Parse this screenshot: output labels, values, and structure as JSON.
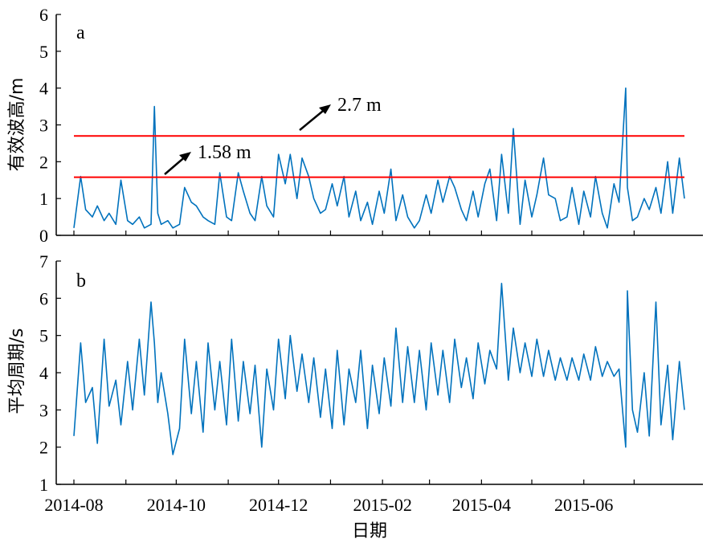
{
  "chart_data": [
    {
      "panel": "a",
      "type": "line",
      "ylabel": "有效波高/m",
      "ylim": [
        0,
        6
      ],
      "yticks": [
        "0",
        "1",
        "2",
        "3",
        "4",
        "5",
        "6"
      ],
      "x_range": [
        "2014-08-01",
        "2015-07-31"
      ],
      "line_color": "#0072BD",
      "series": [
        {
          "x": [
            "2014-08-01",
            "2014-08-05",
            "2014-08-08",
            "2014-08-12",
            "2014-08-15",
            "2014-08-19",
            "2014-08-22",
            "2014-08-26",
            "2014-08-29",
            "2014-09-02",
            "2014-09-05",
            "2014-09-09",
            "2014-09-12",
            "2014-09-16",
            "2014-09-18",
            "2014-09-20",
            "2014-09-22",
            "2014-09-26",
            "2014-09-29",
            "2014-10-03",
            "2014-10-06",
            "2014-10-10",
            "2014-10-13",
            "2014-10-17",
            "2014-10-20",
            "2014-10-24",
            "2014-10-27",
            "2014-10-31",
            "2014-11-03",
            "2014-11-07",
            "2014-11-10",
            "2014-11-14",
            "2014-11-17",
            "2014-11-21",
            "2014-11-24",
            "2014-11-28",
            "2014-12-01",
            "2014-12-05",
            "2014-12-08",
            "2014-12-12",
            "2014-12-15",
            "2014-12-19",
            "2014-12-22",
            "2014-12-26",
            "2014-12-29",
            "2015-01-02",
            "2015-01-05",
            "2015-01-09",
            "2015-01-12",
            "2015-01-16",
            "2015-01-19",
            "2015-01-23",
            "2015-01-26",
            "2015-01-30",
            "2015-02-02",
            "2015-02-06",
            "2015-02-09",
            "2015-02-13",
            "2015-02-16",
            "2015-02-20",
            "2015-02-23",
            "2015-02-27",
            "2015-03-02",
            "2015-03-06",
            "2015-03-09",
            "2015-03-13",
            "2015-03-16",
            "2015-03-20",
            "2015-03-23",
            "2015-03-27",
            "2015-03-30",
            "2015-04-03",
            "2015-04-06",
            "2015-04-10",
            "2015-04-13",
            "2015-04-17",
            "2015-04-20",
            "2015-04-24",
            "2015-04-27",
            "2015-05-01",
            "2015-05-04",
            "2015-05-08",
            "2015-05-11",
            "2015-05-15",
            "2015-05-18",
            "2015-05-22",
            "2015-05-25",
            "2015-05-29",
            "2015-06-01",
            "2015-06-05",
            "2015-06-08",
            "2015-06-12",
            "2015-06-15",
            "2015-06-19",
            "2015-06-22",
            "2015-06-26",
            "2015-06-27",
            "2015-06-30",
            "2015-07-03",
            "2015-07-07",
            "2015-07-10",
            "2015-07-14",
            "2015-07-17",
            "2015-07-21",
            "2015-07-24",
            "2015-07-28",
            "2015-07-31"
          ],
          "y": [
            0.2,
            1.6,
            0.7,
            0.5,
            0.8,
            0.4,
            0.6,
            0.3,
            1.5,
            0.4,
            0.3,
            0.5,
            0.2,
            0.3,
            3.5,
            0.6,
            0.3,
            0.4,
            0.2,
            0.3,
            1.3,
            0.9,
            0.8,
            0.5,
            0.4,
            0.3,
            1.7,
            0.5,
            0.4,
            1.7,
            1.2,
            0.6,
            0.4,
            1.6,
            0.8,
            0.5,
            2.2,
            1.4,
            2.2,
            1.0,
            2.1,
            1.6,
            1.0,
            0.6,
            0.7,
            1.4,
            0.8,
            1.6,
            0.5,
            1.2,
            0.4,
            0.9,
            0.3,
            1.2,
            0.6,
            1.8,
            0.4,
            1.1,
            0.5,
            0.2,
            0.4,
            1.1,
            0.6,
            1.5,
            0.9,
            1.6,
            1.3,
            0.7,
            0.4,
            1.2,
            0.5,
            1.4,
            1.8,
            0.4,
            2.2,
            0.6,
            2.9,
            0.3,
            1.5,
            0.5,
            1.1,
            2.1,
            1.1,
            1.0,
            0.4,
            0.5,
            1.3,
            0.3,
            1.2,
            0.5,
            1.6,
            0.6,
            0.2,
            1.4,
            0.9,
            4.0,
            1.3,
            0.4,
            0.5,
            1.0,
            0.7,
            1.3,
            0.6,
            2.0,
            0.6,
            2.1,
            1.0
          ]
        }
      ],
      "hlines": [
        {
          "y": 2.7,
          "color": "#FF0000"
        },
        {
          "y": 1.58,
          "color": "#FF0000"
        }
      ],
      "annotations": [
        {
          "text": "2.7 m"
        },
        {
          "text": "1.58 m"
        }
      ]
    },
    {
      "panel": "b",
      "type": "line",
      "ylabel": "平均周期/s",
      "ylim": [
        1,
        7
      ],
      "yticks": [
        "1",
        "2",
        "3",
        "4",
        "5",
        "6",
        "7"
      ],
      "x_range": [
        "2014-08-01",
        "2015-07-31"
      ],
      "line_color": "#0072BD",
      "series": [
        {
          "x": [
            "2014-08-01",
            "2014-08-05",
            "2014-08-08",
            "2014-08-12",
            "2014-08-15",
            "2014-08-19",
            "2014-08-22",
            "2014-08-26",
            "2014-08-29",
            "2014-09-02",
            "2014-09-05",
            "2014-09-09",
            "2014-09-12",
            "2014-09-16",
            "2014-09-18",
            "2014-09-20",
            "2014-09-22",
            "2014-09-26",
            "2014-09-29",
            "2014-10-03",
            "2014-10-06",
            "2014-10-10",
            "2014-10-13",
            "2014-10-17",
            "2014-10-20",
            "2014-10-24",
            "2014-10-27",
            "2014-10-31",
            "2014-11-03",
            "2014-11-07",
            "2014-11-10",
            "2014-11-14",
            "2014-11-17",
            "2014-11-21",
            "2014-11-24",
            "2014-11-28",
            "2014-12-01",
            "2014-12-05",
            "2014-12-08",
            "2014-12-12",
            "2014-12-15",
            "2014-12-19",
            "2014-12-22",
            "2014-12-26",
            "2014-12-29",
            "2015-01-02",
            "2015-01-05",
            "2015-01-09",
            "2015-01-12",
            "2015-01-16",
            "2015-01-19",
            "2015-01-23",
            "2015-01-26",
            "2015-01-30",
            "2015-02-02",
            "2015-02-06",
            "2015-02-09",
            "2015-02-13",
            "2015-02-16",
            "2015-02-20",
            "2015-02-23",
            "2015-02-27",
            "2015-03-02",
            "2015-03-06",
            "2015-03-09",
            "2015-03-13",
            "2015-03-16",
            "2015-03-20",
            "2015-03-23",
            "2015-03-27",
            "2015-03-30",
            "2015-04-03",
            "2015-04-06",
            "2015-04-10",
            "2015-04-13",
            "2015-04-17",
            "2015-04-20",
            "2015-04-24",
            "2015-04-27",
            "2015-05-01",
            "2015-05-04",
            "2015-05-08",
            "2015-05-11",
            "2015-05-15",
            "2015-05-18",
            "2015-05-22",
            "2015-05-25",
            "2015-05-29",
            "2015-06-01",
            "2015-06-05",
            "2015-06-08",
            "2015-06-12",
            "2015-06-15",
            "2015-06-19",
            "2015-06-22",
            "2015-06-26",
            "2015-06-27",
            "2015-06-30",
            "2015-07-03",
            "2015-07-07",
            "2015-07-10",
            "2015-07-14",
            "2015-07-17",
            "2015-07-21",
            "2015-07-24",
            "2015-07-28",
            "2015-07-31"
          ],
          "y": [
            2.3,
            4.8,
            3.2,
            3.6,
            2.1,
            4.9,
            3.1,
            3.8,
            2.6,
            4.3,
            3.0,
            4.9,
            3.4,
            5.9,
            4.8,
            3.2,
            4.0,
            2.9,
            1.8,
            2.5,
            4.9,
            2.9,
            4.3,
            2.4,
            4.8,
            3.0,
            4.3,
            2.6,
            4.9,
            2.7,
            4.3,
            2.9,
            4.2,
            2.0,
            4.1,
            3.0,
            4.9,
            3.3,
            5.0,
            3.5,
            4.5,
            3.2,
            4.4,
            2.8,
            4.1,
            2.5,
            4.6,
            2.6,
            4.1,
            3.2,
            4.6,
            2.5,
            4.2,
            2.9,
            4.4,
            3.1,
            5.2,
            3.2,
            4.7,
            3.2,
            4.6,
            3.0,
            4.8,
            3.4,
            4.6,
            3.2,
            4.9,
            3.6,
            4.4,
            3.3,
            4.8,
            3.7,
            4.6,
            4.1,
            6.4,
            3.8,
            5.2,
            4.0,
            4.8,
            3.9,
            4.9,
            3.9,
            4.6,
            3.8,
            4.4,
            3.8,
            4.4,
            3.8,
            4.5,
            3.8,
            4.7,
            3.9,
            4.3,
            3.9,
            4.1,
            2.0,
            6.2,
            3.0,
            2.4,
            4.0,
            2.3,
            5.9,
            2.6,
            4.2,
            2.2,
            4.3,
            3.0
          ]
        }
      ]
    }
  ],
  "x_axis": {
    "ticks": [
      {
        "date": "2014-08-01",
        "label": "2014-08"
      },
      {
        "date": "2014-09-01",
        "label": ""
      },
      {
        "date": "2014-10-01",
        "label": "2014-10"
      },
      {
        "date": "2014-11-01",
        "label": ""
      },
      {
        "date": "2014-12-01",
        "label": "2014-12"
      },
      {
        "date": "2015-01-01",
        "label": ""
      },
      {
        "date": "2015-02-01",
        "label": "2015-02"
      },
      {
        "date": "2015-03-01",
        "label": ""
      },
      {
        "date": "2015-04-01",
        "label": "2015-04"
      },
      {
        "date": "2015-05-01",
        "label": ""
      },
      {
        "date": "2015-06-01",
        "label": "2015-06"
      },
      {
        "date": "2015-07-01",
        "label": ""
      }
    ],
    "xlabel": "日期"
  }
}
